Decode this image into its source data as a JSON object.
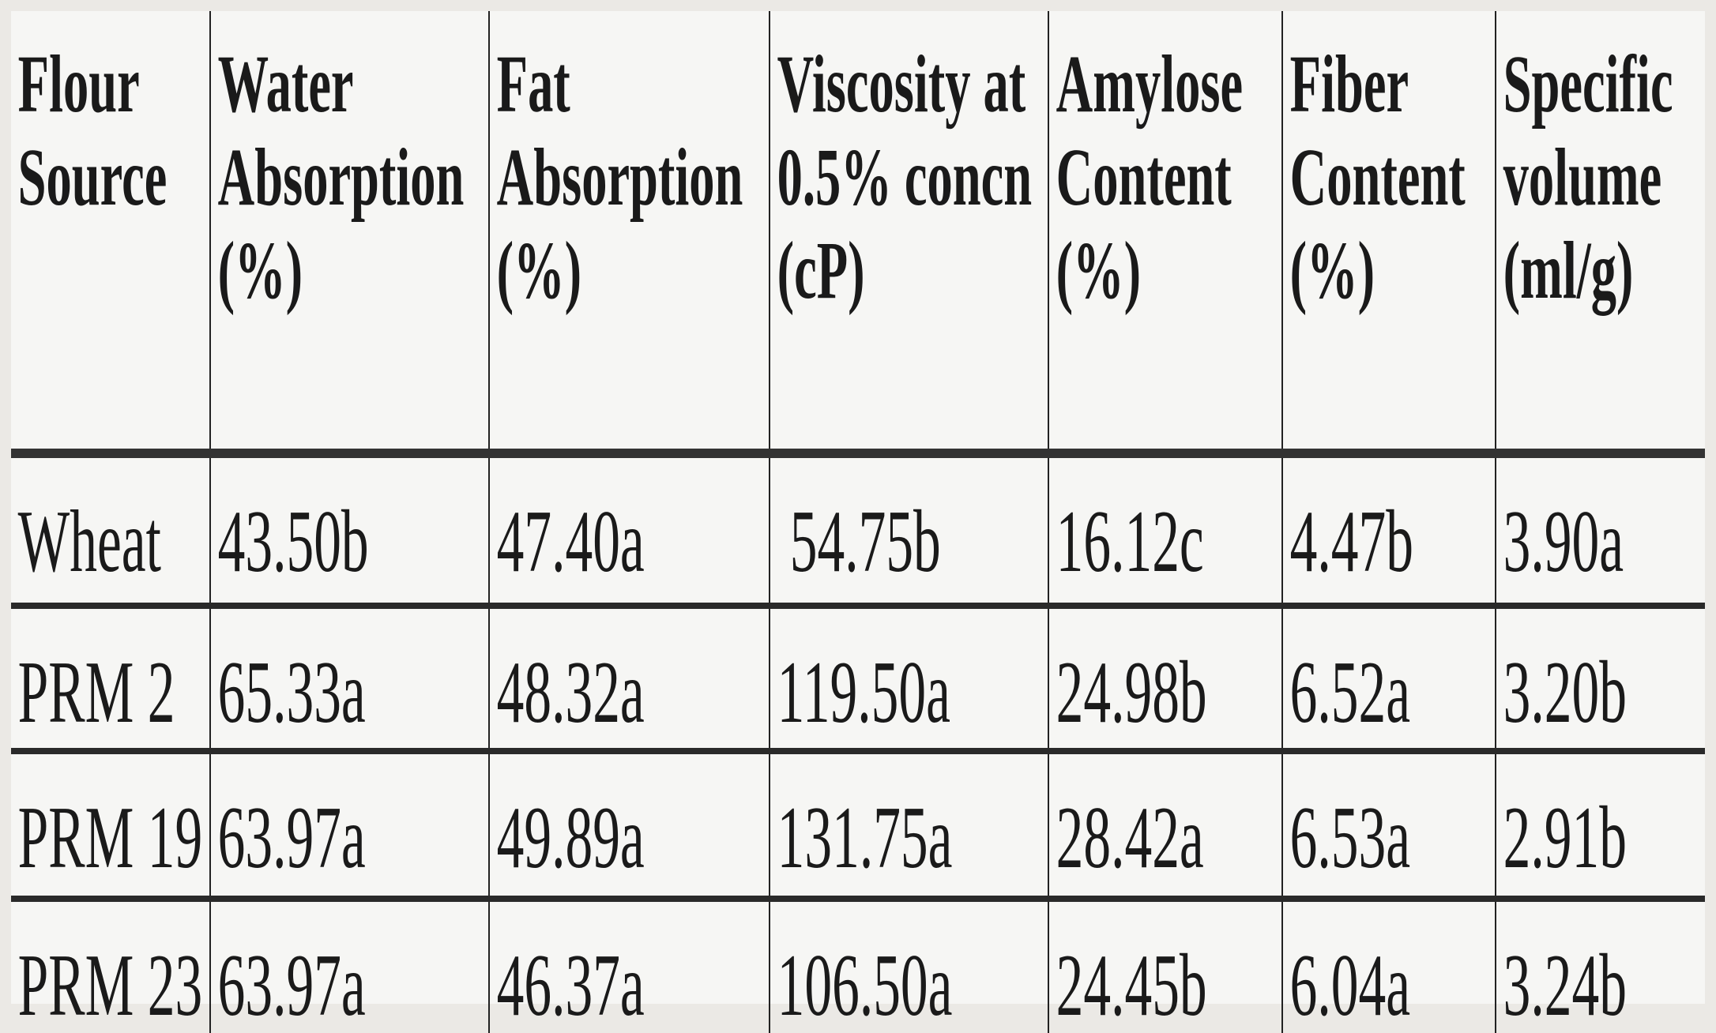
{
  "table": {
    "headers": [
      [
        "Flour",
        "Source"
      ],
      [
        "Water",
        "Absorption",
        "(%)"
      ],
      [
        "Fat",
        "Absorption",
        "(%)"
      ],
      [
        "Viscosity at",
        "0.5% concn",
        "(cP)"
      ],
      [
        "Amylose",
        "Content",
        "(%)"
      ],
      [
        "Fiber",
        "Content",
        "(%)"
      ],
      [
        "Specific",
        "volume",
        "(ml/g)"
      ]
    ],
    "rows": [
      [
        "Wheat",
        "43.50b",
        "47.40a",
        "54.75b",
        "16.12c",
        "4.47b",
        "3.90a"
      ],
      [
        "PRM 2",
        "65.33a",
        "48.32a",
        "119.50a",
        "24.98b",
        "6.52a",
        "3.20b"
      ],
      [
        "PRM 19",
        "63.97a",
        "49.89a",
        "131.75a",
        "28.42a",
        "6.53a",
        "2.91b"
      ],
      [
        "PRM 23",
        "63.97a",
        "46.37a",
        "106.50a",
        "24.45b",
        "6.04a",
        "3.24b"
      ]
    ]
  }
}
